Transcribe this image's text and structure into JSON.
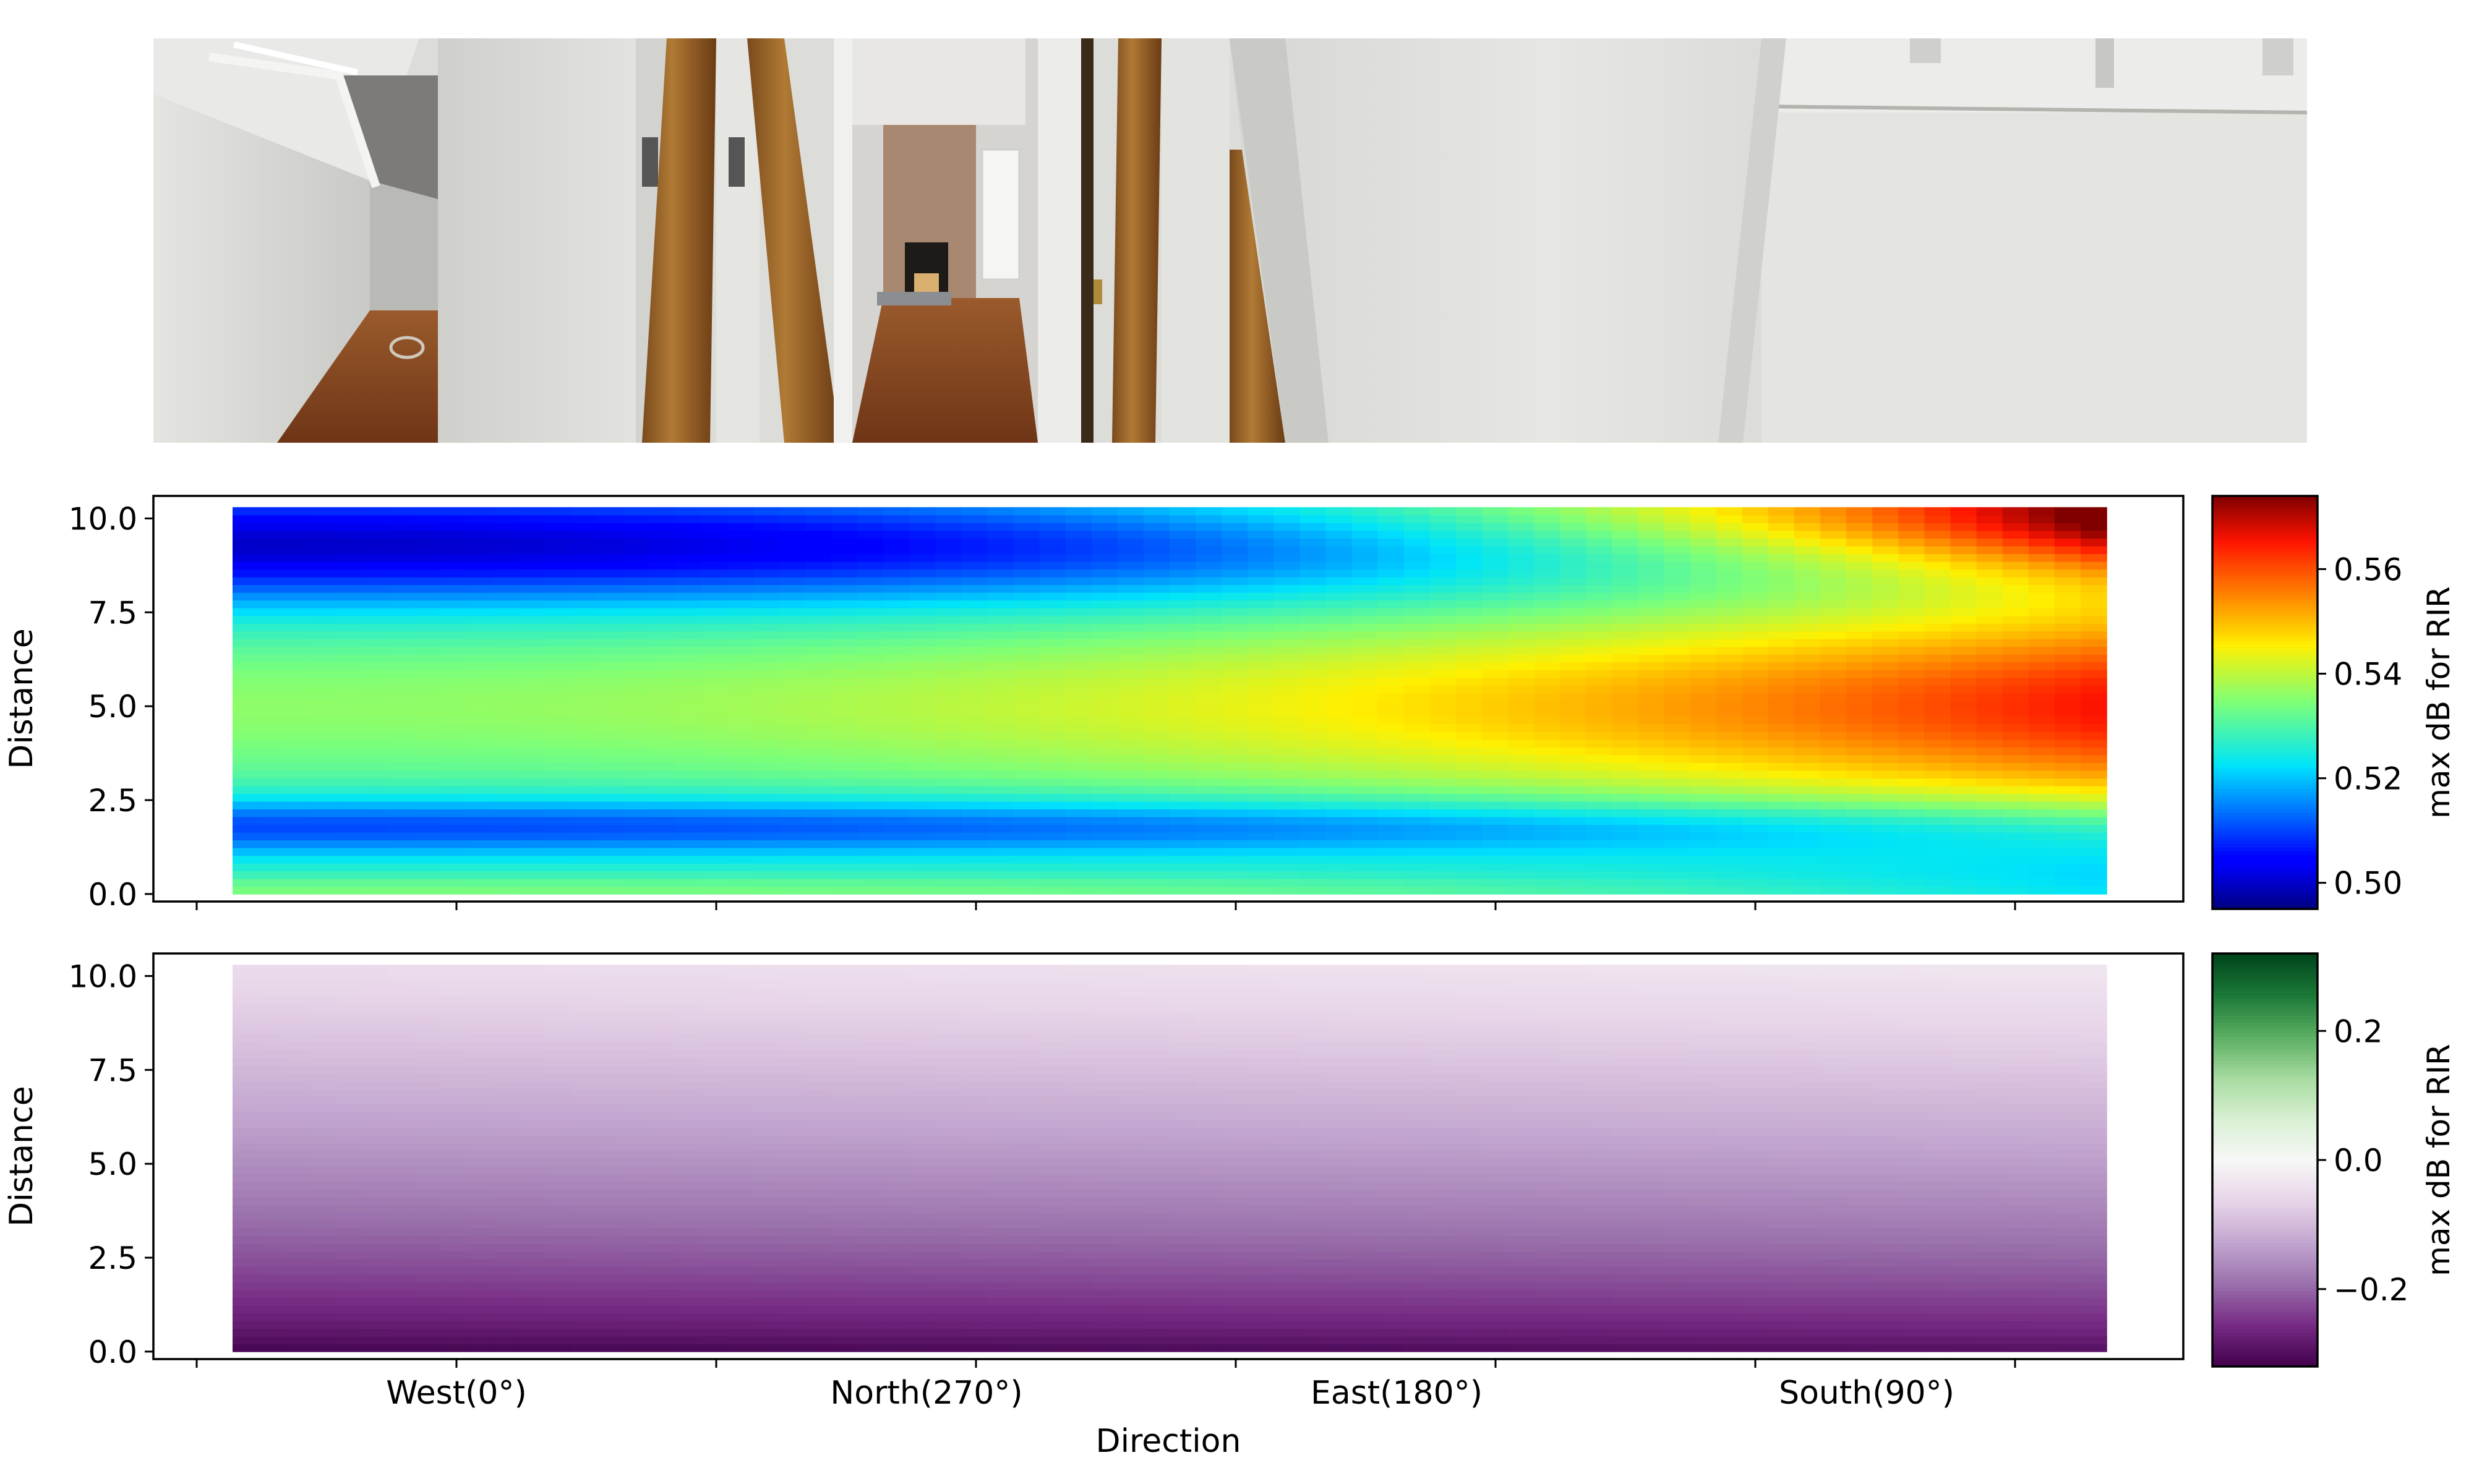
{
  "panorama": {
    "icon": "room-panorama-photo",
    "colors": {
      "wall_light": "#d9d9d6",
      "wall_shadow": "#b8b8b4",
      "ceiling": "#8d8b87",
      "floor_wood": "#8a4a24",
      "beam_wood": "#9c6a2c",
      "brick": "#a0806a"
    }
  },
  "chart_data": [
    {
      "type": "heatmap",
      "ylabel": "Distance",
      "xlabel": "",
      "colorbar_label": "max dB for RIR",
      "colormap": "jet",
      "vmin": 0.495,
      "vmax": 0.574,
      "colorbar_ticks": [
        0.5,
        0.52,
        0.54,
        0.56
      ],
      "colorbar_tick_labels": [
        "0.50",
        "0.52",
        "0.54",
        "0.56"
      ],
      "ylim": [
        -0.2,
        10.6
      ],
      "yticks": [
        0.0,
        2.5,
        5.0,
        7.5,
        10.0
      ],
      "ytick_labels": [
        "0.0",
        "2.5",
        "5.0",
        "7.5",
        "10.0"
      ],
      "x_columns": 72,
      "y_rows": 50,
      "distance_range": [
        0.0,
        10.3
      ],
      "profile_note_west": [
        0.53,
        0.51,
        0.535,
        0.535,
        0.5
      ],
      "profile_note_south": [
        0.515,
        0.55,
        0.565,
        0.555,
        0.574
      ]
    },
    {
      "type": "heatmap",
      "xlabel": "Direction",
      "ylabel": "Distance",
      "colorbar_label": "max dB for RIR",
      "colormap": "PRGn",
      "vmin": -0.32,
      "vmax": 0.32,
      "colorbar_ticks": [
        -0.2,
        0.0,
        0.2
      ],
      "colorbar_tick_labels": [
        "−0.2",
        "0.0",
        "0.2"
      ],
      "ylim": [
        -0.2,
        10.6
      ],
      "yticks": [
        0.0,
        2.5,
        5.0,
        7.5,
        10.0
      ],
      "ytick_labels": [
        "0.0",
        "2.5",
        "5.0",
        "7.5",
        "10.0"
      ],
      "xticks": [
        "West(0°)",
        "North(270°)",
        "East(180°)",
        "South(90°)"
      ],
      "x_columns": 72,
      "y_rows": 50,
      "distance_range": [
        0.0,
        10.3
      ],
      "value_at_distance_0": -0.32,
      "value_at_distance_10": -0.05
    }
  ]
}
